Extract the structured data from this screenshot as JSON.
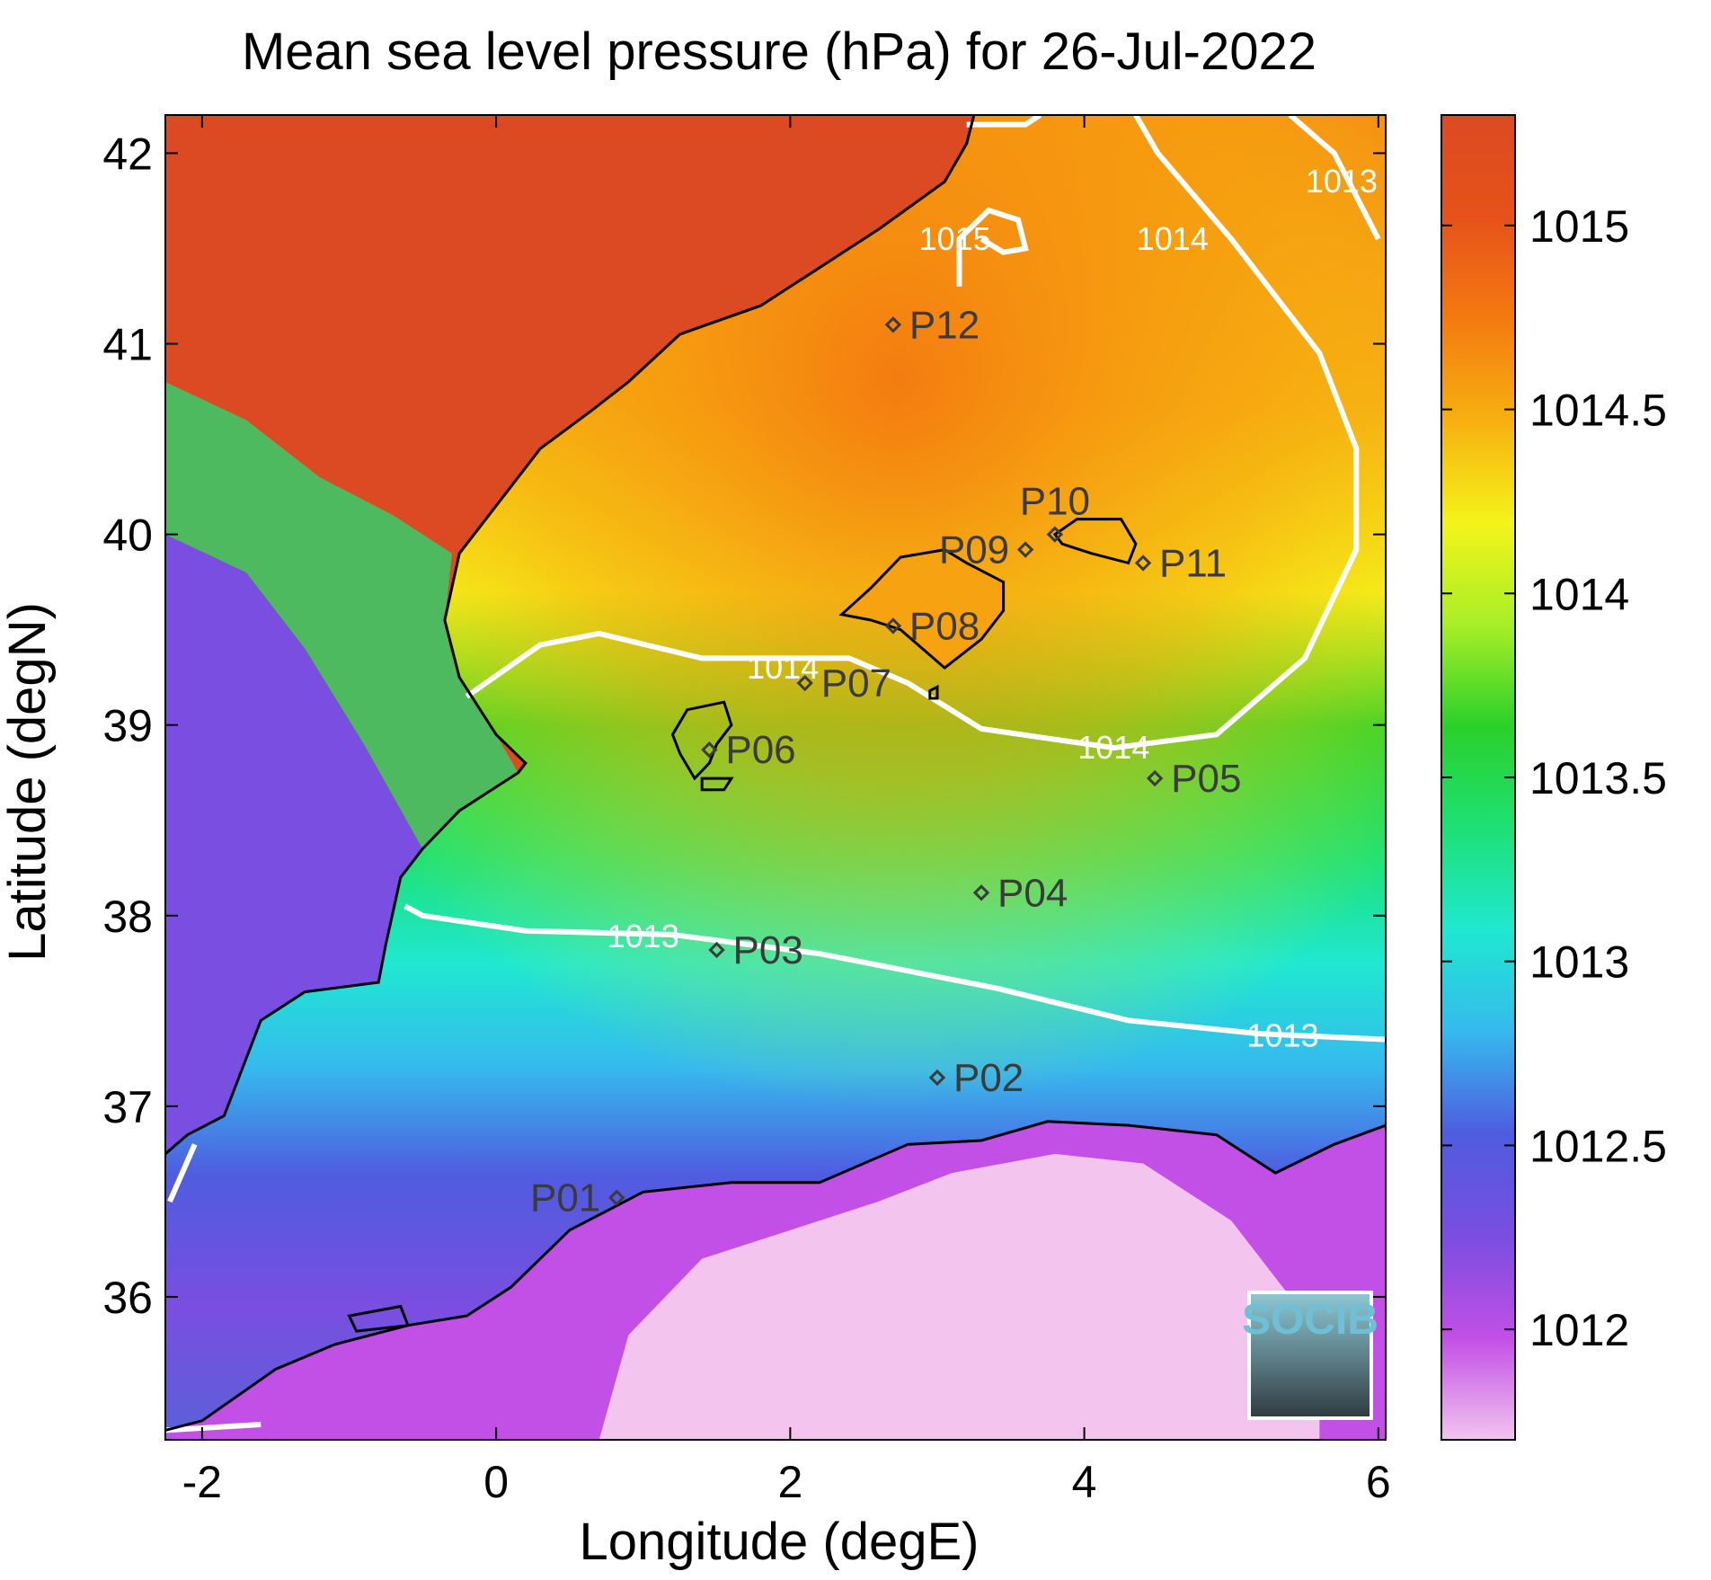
{
  "title": "Mean sea level pressure (hPa) for 26-Jul-2022",
  "xlabel": "Longitude (degE)",
  "ylabel": "Latitude (degN)",
  "xlim": [
    -2.25,
    6.05
  ],
  "ylim": [
    35.25,
    42.2
  ],
  "x_ticks": [
    {
      "value": -2,
      "label": "-2"
    },
    {
      "value": 0,
      "label": "0"
    },
    {
      "value": 2,
      "label": "2"
    },
    {
      "value": 4,
      "label": "4"
    },
    {
      "value": 6,
      "label": "6"
    }
  ],
  "y_ticks": [
    {
      "value": 36,
      "label": "36"
    },
    {
      "value": 37,
      "label": "37"
    },
    {
      "value": 38,
      "label": "38"
    },
    {
      "value": 39,
      "label": "39"
    },
    {
      "value": 40,
      "label": "40"
    },
    {
      "value": 41,
      "label": "41"
    },
    {
      "value": 42,
      "label": "42"
    }
  ],
  "colorbar": {
    "range": [
      1011.7,
      1015.3
    ],
    "ticks": [
      {
        "value": 1012,
        "label": "1012"
      },
      {
        "value": 1012.5,
        "label": "1012.5"
      },
      {
        "value": 1013,
        "label": "1013"
      },
      {
        "value": 1013.5,
        "label": "1013.5"
      },
      {
        "value": 1014,
        "label": "1014"
      },
      {
        "value": 1014.5,
        "label": "1014.5"
      },
      {
        "value": 1015,
        "label": "1015"
      }
    ],
    "colors": [
      "#f2c4ee",
      "#c24fe6",
      "#7a4ee0",
      "#4f5ce0",
      "#36b9ee",
      "#1fe8d1",
      "#1ee075",
      "#2ad02a",
      "#a8ee28",
      "#f4f41a",
      "#f7b010",
      "#f47a10",
      "#e6521a",
      "#db4a22"
    ]
  },
  "chart_data": {
    "type": "heatmap",
    "stations": [
      {
        "name": "P01",
        "lon": 0.82,
        "lat": 36.52,
        "label_side": "left"
      },
      {
        "name": "P02",
        "lon": 3.0,
        "lat": 37.15,
        "label_side": "right"
      },
      {
        "name": "P03",
        "lon": 1.5,
        "lat": 37.82,
        "label_side": "right"
      },
      {
        "name": "P04",
        "lon": 3.3,
        "lat": 38.12,
        "label_side": "right"
      },
      {
        "name": "P05",
        "lon": 4.48,
        "lat": 38.72,
        "label_side": "right"
      },
      {
        "name": "P06",
        "lon": 1.45,
        "lat": 38.87,
        "label_side": "right"
      },
      {
        "name": "P07",
        "lon": 2.1,
        "lat": 39.22,
        "label_side": "right"
      },
      {
        "name": "P08",
        "lon": 2.7,
        "lat": 39.52,
        "label_side": "right"
      },
      {
        "name": "P09",
        "lon": 3.6,
        "lat": 39.92,
        "label_side": "left"
      },
      {
        "name": "P10",
        "lon": 3.8,
        "lat": 40.0,
        "label_side": "above"
      },
      {
        "name": "P11",
        "lon": 4.4,
        "lat": 39.85,
        "label_side": "right"
      },
      {
        "name": "P12",
        "lon": 2.7,
        "lat": 41.1,
        "label_side": "right"
      }
    ],
    "contours": [
      {
        "level": "1013",
        "points": [
          [
            -0.62,
            38.05
          ],
          [
            -0.5,
            38.0
          ],
          [
            0.2,
            37.92
          ],
          [
            1.2,
            37.9
          ],
          [
            2.2,
            37.8
          ],
          [
            3.4,
            37.62
          ],
          [
            4.3,
            37.45
          ],
          [
            5.2,
            37.38
          ],
          [
            6.05,
            37.35
          ]
        ],
        "labels": [
          [
            1.0,
            37.89
          ],
          [
            5.35,
            37.37
          ]
        ]
      },
      {
        "level": "1014",
        "points": [
          [
            -0.2,
            39.15
          ],
          [
            0.3,
            39.42
          ],
          [
            0.7,
            39.48
          ],
          [
            1.4,
            39.35
          ],
          [
            2.4,
            39.35
          ],
          [
            2.8,
            39.22
          ],
          [
            3.3,
            38.98
          ],
          [
            4.2,
            38.88
          ],
          [
            4.9,
            38.95
          ],
          [
            5.5,
            39.35
          ],
          [
            5.85,
            39.92
          ],
          [
            5.85,
            40.45
          ],
          [
            5.6,
            40.95
          ],
          [
            5.0,
            41.55
          ],
          [
            4.5,
            42.0
          ],
          [
            4.35,
            42.2
          ]
        ],
        "labels": [
          [
            1.95,
            39.3
          ],
          [
            4.2,
            38.88
          ],
          [
            4.6,
            41.55
          ]
        ]
      },
      {
        "level": "1013",
        "points": [
          [
            5.4,
            42.2
          ],
          [
            5.7,
            42.0
          ],
          [
            6.0,
            41.55
          ]
        ],
        "labels": [
          [
            5.75,
            41.85
          ]
        ]
      },
      {
        "level": "1015",
        "points": [
          [
            3.2,
            42.15
          ],
          [
            3.6,
            42.15
          ],
          [
            3.7,
            42.2
          ]
        ],
        "labels": []
      },
      {
        "level": "1015",
        "points": [
          [
            3.15,
            41.3
          ],
          [
            3.15,
            41.55
          ],
          [
            3.35,
            41.7
          ],
          [
            3.55,
            41.65
          ],
          [
            3.6,
            41.5
          ],
          [
            3.45,
            41.48
          ],
          [
            3.3,
            41.55
          ]
        ],
        "labels": [
          [
            3.12,
            41.55
          ]
        ]
      },
      {
        "level": "",
        "points": [
          [
            -2.25,
            35.3
          ],
          [
            -1.6,
            35.33
          ]
        ],
        "labels": []
      },
      {
        "level": "",
        "points": [
          [
            -2.22,
            36.5
          ],
          [
            -2.05,
            36.8
          ]
        ],
        "labels": []
      }
    ]
  },
  "logo": {
    "text": "SOCIB"
  }
}
